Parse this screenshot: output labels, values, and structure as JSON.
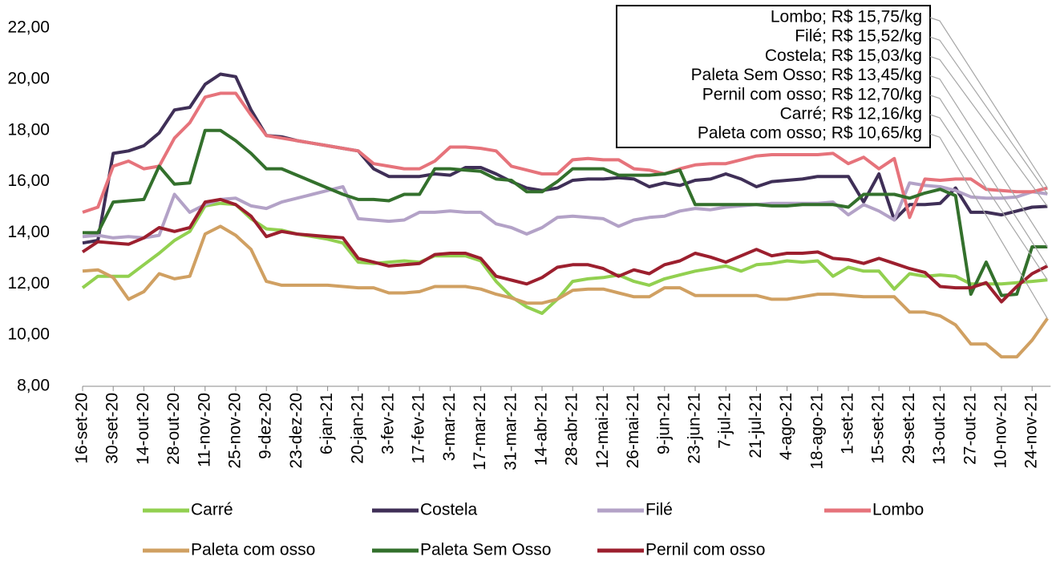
{
  "chart_data": {
    "type": "line",
    "categories": [
      "16-set-20",
      null,
      "30-set-20",
      null,
      "14-out-20",
      null,
      "28-out-20",
      null,
      "11-nov-20",
      null,
      "25-nov-20",
      null,
      "9-dez-20",
      null,
      "23-dez-20",
      null,
      "6-jan-21",
      null,
      "20-jan-21",
      null,
      "3-fev-21",
      null,
      "17-fev-21",
      null,
      "3-mar-21",
      null,
      "17-mar-21",
      null,
      "31-mar-21",
      null,
      "14-abr-21",
      null,
      "28-abr-21",
      null,
      "12-mai-21",
      null,
      "26-mai-21",
      null,
      "9-jun-21",
      null,
      "23-jun-21",
      null,
      "7-jul-21",
      null,
      "21-jul-21",
      null,
      "4-ago-21",
      null,
      "18-ago-21",
      null,
      "1-set-21",
      null,
      "15-set-21",
      null,
      "29-set-21",
      null,
      "13-out-21",
      null,
      "27-out-21",
      null,
      "10-nov-21",
      null,
      "24-nov-21",
      null
    ],
    "series": [
      {
        "name": "Carré",
        "color": "#92d050",
        "values": [
          11.85,
          12.3,
          12.3,
          12.3,
          12.75,
          13.2,
          13.7,
          14.05,
          15.05,
          15.15,
          15.1,
          14.55,
          14.15,
          14.1,
          13.95,
          13.85,
          13.75,
          13.6,
          12.85,
          12.8,
          12.85,
          12.9,
          12.85,
          13.1,
          13.1,
          13.1,
          12.9,
          12.1,
          11.5,
          11.1,
          10.85,
          11.4,
          12.1,
          12.2,
          12.25,
          12.35,
          12.1,
          11.95,
          12.2,
          12.35,
          12.5,
          12.6,
          12.7,
          12.5,
          12.75,
          12.8,
          12.9,
          12.85,
          12.9,
          12.3,
          12.65,
          12.5,
          12.5,
          11.8,
          12.4,
          12.3,
          12.35,
          12.3,
          12.0,
          12.0,
          12.0,
          12.05,
          12.1,
          12.16
        ]
      },
      {
        "name": "Costela",
        "color": "#3f2f57",
        "values": [
          13.6,
          13.7,
          17.1,
          17.2,
          17.4,
          17.9,
          18.8,
          18.9,
          19.8,
          20.2,
          20.1,
          18.8,
          17.8,
          17.75,
          17.6,
          17.5,
          17.4,
          17.3,
          17.2,
          16.5,
          16.2,
          16.2,
          16.2,
          16.3,
          16.25,
          16.55,
          16.55,
          16.3,
          16.0,
          15.75,
          15.65,
          15.75,
          16.05,
          16.1,
          16.1,
          16.15,
          16.1,
          15.8,
          15.95,
          15.85,
          16.05,
          16.1,
          16.3,
          16.1,
          15.8,
          16.0,
          16.05,
          16.1,
          16.2,
          16.2,
          16.2,
          15.2,
          16.3,
          14.5,
          15.1,
          15.1,
          15.15,
          15.75,
          14.8,
          14.8,
          14.7,
          14.85,
          15.0,
          15.03
        ]
      },
      {
        "name": "Filé",
        "color": "#b3a2c7",
        "values": [
          13.85,
          13.9,
          13.8,
          13.85,
          13.8,
          13.9,
          15.5,
          14.8,
          15.1,
          15.3,
          15.35,
          15.05,
          14.95,
          15.2,
          15.35,
          15.5,
          15.65,
          15.8,
          14.55,
          14.5,
          14.45,
          14.5,
          14.8,
          14.8,
          14.85,
          14.8,
          14.8,
          14.35,
          14.2,
          13.95,
          14.2,
          14.6,
          14.65,
          14.6,
          14.55,
          14.25,
          14.5,
          14.6,
          14.65,
          14.85,
          14.95,
          14.9,
          15.0,
          15.05,
          15.1,
          15.15,
          15.15,
          15.15,
          15.15,
          15.2,
          14.7,
          15.1,
          14.85,
          14.5,
          15.95,
          15.85,
          15.8,
          15.65,
          15.4,
          15.35,
          15.35,
          15.4,
          15.6,
          15.52
        ]
      },
      {
        "name": "Lombo",
        "color": "#e6737b",
        "values": [
          14.8,
          15.0,
          16.6,
          16.8,
          16.5,
          16.6,
          17.7,
          18.3,
          19.3,
          19.45,
          19.45,
          18.6,
          17.8,
          17.7,
          17.6,
          17.5,
          17.4,
          17.3,
          17.2,
          16.7,
          16.6,
          16.5,
          16.5,
          16.8,
          17.35,
          17.35,
          17.3,
          17.2,
          16.6,
          16.45,
          16.3,
          16.3,
          16.85,
          16.9,
          16.85,
          16.85,
          16.5,
          16.45,
          16.3,
          16.5,
          16.65,
          16.7,
          16.7,
          16.85,
          17.0,
          17.05,
          17.05,
          17.05,
          17.05,
          17.1,
          16.7,
          16.95,
          16.5,
          16.9,
          14.6,
          16.1,
          16.05,
          16.1,
          16.1,
          15.7,
          15.65,
          15.6,
          15.6,
          15.75
        ]
      },
      {
        "name": "Paleta com osso",
        "color": "#d0a062",
        "values": [
          12.5,
          12.55,
          12.25,
          11.4,
          11.7,
          12.4,
          12.2,
          12.3,
          13.95,
          14.25,
          13.9,
          13.35,
          12.1,
          11.95,
          11.95,
          11.95,
          11.95,
          11.9,
          11.85,
          11.85,
          11.65,
          11.65,
          11.7,
          11.9,
          11.9,
          11.9,
          11.8,
          11.6,
          11.45,
          11.25,
          11.25,
          11.4,
          11.75,
          11.8,
          11.8,
          11.65,
          11.5,
          11.5,
          11.85,
          11.85,
          11.55,
          11.55,
          11.55,
          11.55,
          11.55,
          11.4,
          11.4,
          11.5,
          11.6,
          11.6,
          11.55,
          11.5,
          11.5,
          11.5,
          10.9,
          10.9,
          10.75,
          10.4,
          9.65,
          9.65,
          9.15,
          9.15,
          9.8,
          10.65
        ]
      },
      {
        "name": "Paleta Sem Osso",
        "color": "#33702c",
        "values": [
          14.0,
          14.0,
          15.2,
          15.25,
          15.3,
          16.6,
          15.9,
          15.95,
          18.0,
          18.0,
          17.6,
          17.1,
          16.5,
          16.5,
          16.25,
          16.0,
          15.75,
          15.5,
          15.3,
          15.3,
          15.25,
          15.5,
          15.5,
          16.5,
          16.5,
          16.45,
          16.4,
          16.1,
          16.05,
          15.6,
          15.6,
          16.0,
          16.5,
          16.5,
          16.5,
          16.25,
          16.25,
          16.25,
          16.3,
          16.45,
          15.1,
          15.1,
          15.1,
          15.1,
          15.1,
          15.05,
          15.05,
          15.1,
          15.1,
          15.1,
          15.0,
          15.5,
          15.5,
          15.5,
          15.35,
          15.55,
          15.7,
          15.45,
          11.6,
          12.85,
          11.55,
          11.6,
          13.45,
          13.45
        ]
      },
      {
        "name": "Pernil com osso",
        "color": "#9c1f2e",
        "values": [
          13.25,
          13.65,
          13.6,
          13.55,
          13.8,
          14.2,
          14.05,
          14.2,
          15.2,
          15.3,
          15.1,
          14.65,
          13.85,
          14.05,
          13.95,
          13.9,
          13.85,
          13.8,
          13.0,
          12.85,
          12.7,
          12.75,
          12.8,
          13.15,
          13.2,
          13.2,
          13.0,
          12.3,
          12.15,
          12.0,
          12.25,
          12.65,
          12.75,
          12.75,
          12.6,
          12.3,
          12.55,
          12.4,
          12.75,
          12.9,
          13.2,
          13.05,
          12.85,
          13.1,
          13.35,
          13.1,
          13.2,
          13.2,
          13.25,
          13.0,
          12.95,
          12.8,
          13.0,
          12.8,
          12.6,
          12.45,
          11.9,
          11.85,
          11.85,
          12.05,
          11.3,
          11.9,
          12.4,
          12.7
        ]
      }
    ],
    "annotations": [
      "Lombo; R$ 15,75/kg",
      "Filé; R$ 15,52/kg",
      "Costela; R$ 15,03/kg",
      "Paleta Sem Osso; R$ 13,45/kg",
      "Pernil com osso; R$ 12,70/kg",
      "Carré; R$ 12,16/kg",
      "Paleta com osso; R$ 10,65/kg"
    ],
    "ylim": [
      8,
      22
    ],
    "yticks": [
      {
        "value": 8,
        "label": "8,00"
      },
      {
        "value": 10,
        "label": "10,00"
      },
      {
        "value": 12,
        "label": "12,00"
      },
      {
        "value": 14,
        "label": "14,00"
      },
      {
        "value": 16,
        "label": "16,00"
      },
      {
        "value": 18,
        "label": "18,00"
      },
      {
        "value": 20,
        "label": "20,00"
      },
      {
        "value": 22,
        "label": "22,00"
      }
    ],
    "grid": false
  }
}
